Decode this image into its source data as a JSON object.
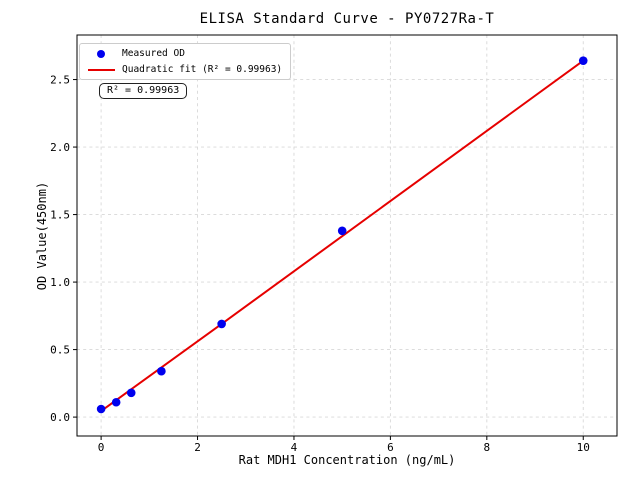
{
  "chart_data": {
    "type": "scatter",
    "title": "ELISA Standard Curve - PY0727Ra-T",
    "xlabel": "Rat MDH1 Concentration (ng/mL)",
    "ylabel": "OD Value(450nm)",
    "xlim": [
      -0.5,
      10.7
    ],
    "ylim": [
      -0.14,
      2.83
    ],
    "x_ticks": {
      "values": [
        0,
        2,
        4,
        6,
        8,
        10
      ],
      "labels": [
        "0",
        "2",
        "4",
        "6",
        "8",
        "10"
      ]
    },
    "y_ticks": {
      "values": [
        0.0,
        0.5,
        1.0,
        1.5,
        2.0,
        2.5
      ],
      "labels": [
        "0.0",
        "0.5",
        "1.0",
        "1.5",
        "2.0",
        "2.5"
      ]
    },
    "grid": {
      "visible": true,
      "style": "dashed",
      "color": "#d8d8d8"
    },
    "legend_position": "upper-left",
    "annotation": "R² = 0.99963",
    "r_squared": "0.99963",
    "series": [
      {
        "name": "Measured OD",
        "type": "scatter",
        "color": "#0000ee",
        "x": [
          0,
          0.3125,
          0.625,
          1.25,
          2.5,
          5,
          10
        ],
        "y": [
          0.06,
          0.11,
          0.18,
          0.34,
          0.69,
          1.38,
          2.64
        ]
      },
      {
        "name": "Quadratic fit (R² = 0.99963)",
        "type": "line",
        "color": "#e60000",
        "x": [
          0,
          2.5,
          5,
          7.5,
          10
        ],
        "y": [
          0.045,
          0.69,
          1.34,
          1.99,
          2.64
        ]
      }
    ]
  }
}
